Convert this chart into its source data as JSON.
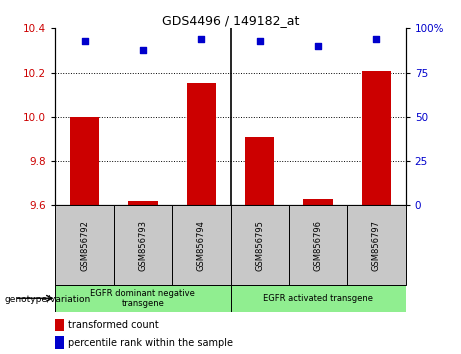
{
  "title": "GDS4496 / 149182_at",
  "samples": [
    "GSM856792",
    "GSM856793",
    "GSM856794",
    "GSM856795",
    "GSM856796",
    "GSM856797"
  ],
  "red_values": [
    10.0,
    9.62,
    10.155,
    9.91,
    9.63,
    10.205
  ],
  "blue_values": [
    93,
    88,
    94,
    93,
    90,
    94
  ],
  "ylim_left": [
    9.6,
    10.4
  ],
  "ylim_right": [
    0,
    100
  ],
  "yticks_left": [
    9.6,
    9.8,
    10.0,
    10.2,
    10.4
  ],
  "yticks_right": [
    0,
    25,
    50,
    75,
    100
  ],
  "ytick_labels_right": [
    "0",
    "25",
    "50",
    "75",
    "100%"
  ],
  "grid_values": [
    9.8,
    10.0,
    10.2
  ],
  "group1_label": "EGFR dominant negative\ntransgene",
  "group2_label": "EGFR activated transgene",
  "group1_indices": [
    0,
    1,
    2
  ],
  "group2_indices": [
    3,
    4,
    5
  ],
  "legend_red_label": "transformed count",
  "legend_blue_label": "percentile rank within the sample",
  "genotype_label": "genotype/variation",
  "red_color": "#CC0000",
  "blue_color": "#0000CC",
  "group_bg": "#90EE90",
  "sample_bg": "#C8C8C8",
  "bar_width": 0.5
}
